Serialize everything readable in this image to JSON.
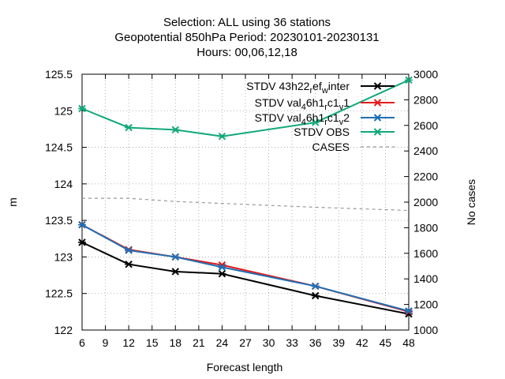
{
  "chart_data": {
    "type": "line",
    "title_lines": [
      "Selection: ALL using    36 stations",
      "Geopotential 850hPa   Period: 20230101-20230131",
      "Hours:  00,06,12,18"
    ],
    "xlabel": "Forecast length",
    "ylabel": "m",
    "y2label": "No cases",
    "x": [
      6,
      12,
      18,
      24,
      36,
      48
    ],
    "xticks": [
      6,
      9,
      12,
      15,
      18,
      21,
      24,
      27,
      30,
      33,
      36,
      39,
      42,
      45,
      48
    ],
    "xlim": [
      6,
      48
    ],
    "ylim": [
      122,
      125.5
    ],
    "yticks": [
      122,
      122.5,
      123,
      123.5,
      124,
      124.5,
      125,
      125.5
    ],
    "ytick_labels": [
      "122",
      "122.5",
      "123",
      "123.5",
      "124",
      "124.5",
      "125",
      "125.5"
    ],
    "y2lim": [
      1000,
      3000
    ],
    "y2ticks": [
      1000,
      1200,
      1400,
      1600,
      1800,
      2000,
      2200,
      2400,
      2600,
      2800,
      3000
    ],
    "grid": true,
    "legend_position": "top-right",
    "series": [
      {
        "name": "STDV 43h22_ref_winter",
        "name_display": {
          "base": "STDV 43h22",
          "parts": [
            [
              "sub",
              "r"
            ],
            [
              "n",
              "ef"
            ],
            [
              "sub",
              "w"
            ],
            [
              "n",
              "inter"
            ]
          ]
        },
        "color": "#000000",
        "axis": "y",
        "values": [
          123.2,
          122.9,
          122.8,
          122.77,
          122.47,
          122.22
        ]
      },
      {
        "name": "STDV val_46h1_rc1_v1",
        "name_display": {
          "base": "STDV val",
          "parts": [
            [
              "sub",
              "4"
            ],
            [
              "n",
              "6h1"
            ],
            [
              "sub",
              "r"
            ],
            [
              "n",
              "c1"
            ],
            [
              "sub",
              "v"
            ],
            [
              "n",
              "1"
            ]
          ]
        },
        "color": "#e41a1c",
        "axis": "y",
        "values": [
          123.44,
          123.1,
          123.0,
          122.89,
          122.6,
          122.25
        ]
      },
      {
        "name": "STDV val_46h1_rc1_v2",
        "name_display": {
          "base": "STDV val",
          "parts": [
            [
              "sub",
              "4"
            ],
            [
              "n",
              "6h1"
            ],
            [
              "sub",
              "r"
            ],
            [
              "n",
              "c1"
            ],
            [
              "sub",
              "v"
            ],
            [
              "n",
              "2"
            ]
          ]
        },
        "color": "#1f6fb4",
        "axis": "y",
        "values": [
          123.44,
          123.09,
          123.0,
          122.86,
          122.6,
          122.26
        ]
      },
      {
        "name": "STDV OBS",
        "color": "#11a87a",
        "axis": "y",
        "values": [
          125.03,
          124.77,
          124.74,
          124.65,
          124.84,
          125.42
        ]
      },
      {
        "name": "CASES",
        "color": "#999999",
        "axis": "y2",
        "dashed": true,
        "values": [
          2030,
          2030,
          2005,
          1990,
          1960,
          1935
        ]
      }
    ]
  }
}
